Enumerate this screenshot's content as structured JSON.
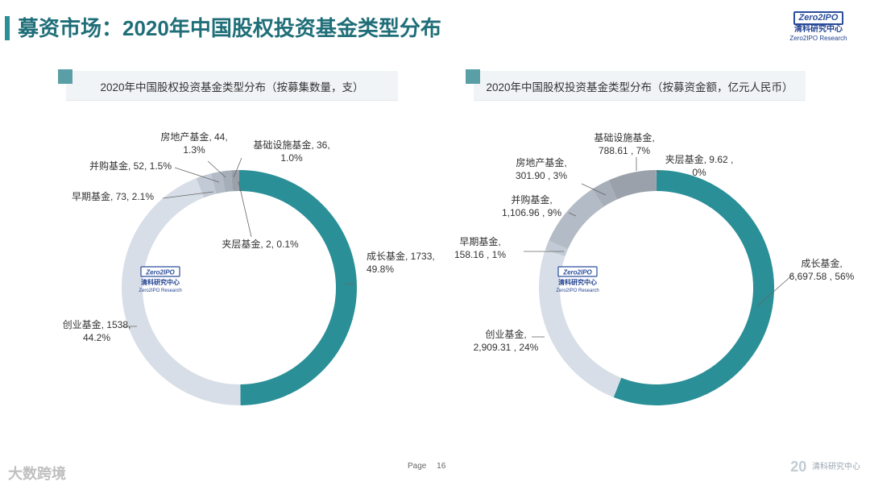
{
  "header": {
    "title": "募资市场：2020年中国股权投资基金类型分布",
    "logo_text": "Zero2IPO",
    "logo_cn": "清科研究中心",
    "logo_en": "Zero2IPO Research"
  },
  "panels": [
    {
      "title": "2020年中国股权投资基金类型分布（按募集数量，支）"
    },
    {
      "title": "2020年中国股权投资基金类型分布（按募资金额，亿元人民币）"
    }
  ],
  "center_logo": {
    "box": "Zero2IPO",
    "cn": "清科研究中心",
    "en": "Zero2IPO Research"
  },
  "colors": {
    "teal": "#2a8f97",
    "light": "#d8dee7",
    "mid": "#c2cad6",
    "gray1": "#b3bbc6",
    "gray2": "#a6aeb9",
    "dark": "#9aa1ab"
  },
  "chart_data": [
    {
      "type": "pie",
      "donut": true,
      "title": "2020年中国股权投资基金类型分布（按募集数量，支）",
      "slices": [
        {
          "name": "成长基金",
          "value": 1733,
          "label": [
            "成长基金, 1733,",
            "49.8%"
          ]
        },
        {
          "name": "创业基金",
          "value": 1538,
          "label": [
            "创业基金, 1538,",
            "44.2%"
          ]
        },
        {
          "name": "早期基金",
          "value": 73,
          "label": [
            "早期基金, 73, 2.1%"
          ]
        },
        {
          "name": "并购基金",
          "value": 52,
          "label": [
            "并购基金, 52, 1.5%"
          ]
        },
        {
          "name": "房地产基金",
          "value": 44,
          "label": [
            "房地产基金, 44,",
            "1.3%"
          ]
        },
        {
          "name": "基础设施基金",
          "value": 36,
          "label": [
            "基础设施基金, 36,",
            "1.0%"
          ]
        },
        {
          "name": "夹层基金",
          "value": 2,
          "label": [
            "夹层基金, 2, 0.1%"
          ]
        }
      ]
    },
    {
      "type": "pie",
      "donut": true,
      "title": "2020年中国股权投资基金类型分布（按募资金额，亿元人民币）",
      "slices": [
        {
          "name": "成长基金",
          "value": 6697.58,
          "label": [
            "成长基金,",
            "6,697.58 , 56%"
          ]
        },
        {
          "name": "创业基金",
          "value": 2909.31,
          "label": [
            "创业基金,",
            "2,909.31 , 24%"
          ]
        },
        {
          "name": "早期基金",
          "value": 158.16,
          "label": [
            "早期基金,",
            "158.16 , 1%"
          ]
        },
        {
          "name": "并购基金",
          "value": 1106.96,
          "label": [
            "并购基金,",
            "1,106.96 , 9%"
          ]
        },
        {
          "name": "房地产基金",
          "value": 301.9,
          "label": [
            "房地产基金,",
            "301.90 , 3%"
          ]
        },
        {
          "name": "基础设施基金",
          "value": 788.61,
          "label": [
            "基础设施基金,",
            "788.61 , 7%"
          ]
        },
        {
          "name": "夹层基金",
          "value": 9.62,
          "label": [
            "夹层基金, 9.62 ,",
            "0%"
          ]
        }
      ]
    }
  ],
  "footer": {
    "page_label": "Page",
    "page_number": "16",
    "logo_big": "20",
    "logo_text": "清科研究中心",
    "watermark": "大数跨境"
  }
}
